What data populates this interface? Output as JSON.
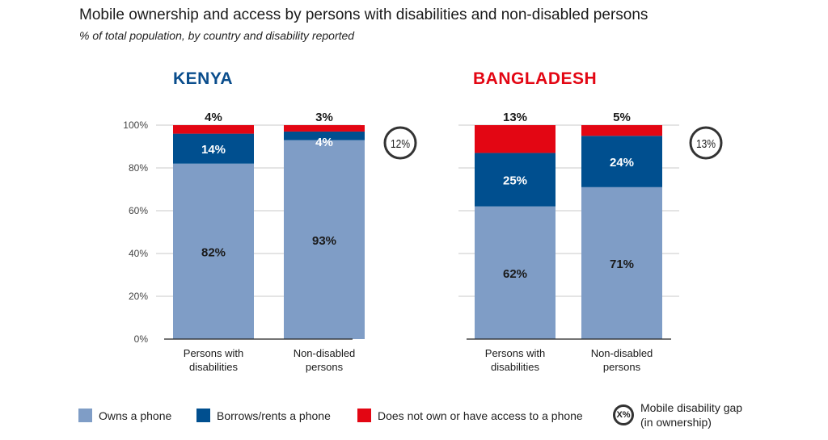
{
  "title": "Mobile ownership and access by persons with disabilities and non-disabled persons",
  "subtitle": "% of total population, by country and disability reported",
  "colors": {
    "owns": "#7f9dc6",
    "borrows": "#004f8f",
    "no_access": "#e30613",
    "kenya": "#0a4d8c",
    "bangladesh": "#e30613"
  },
  "legend": {
    "owns": "Owns a phone",
    "borrows": "Borrows/rents a phone",
    "no_access": "Does not own or have access to a phone",
    "gap_symbol": "X%",
    "gap_line1": "Mobile disability gap",
    "gap_line2": "(in ownership)"
  },
  "chart_data": [
    {
      "type": "bar",
      "stacked": true,
      "title": "KENYA",
      "categories": [
        "Persons with disabilities",
        "Non-disabled persons"
      ],
      "series": [
        {
          "name": "Owns a phone",
          "values": [
            82,
            93
          ]
        },
        {
          "name": "Borrows/rents a phone",
          "values": [
            14,
            4
          ]
        },
        {
          "name": "Does not own or have access to a phone",
          "values": [
            4,
            3
          ]
        }
      ],
      "gap": "12%",
      "yticks": [
        "0%",
        "20%",
        "40%",
        "60%",
        "80%",
        "100%"
      ],
      "ylim": [
        0,
        100
      ]
    },
    {
      "type": "bar",
      "stacked": true,
      "title": "BANGLADESH",
      "categories": [
        "Persons with disabilities",
        "Non-disabled persons"
      ],
      "series": [
        {
          "name": "Owns a phone",
          "values": [
            62,
            71
          ]
        },
        {
          "name": "Borrows/rents a phone",
          "values": [
            25,
            24
          ]
        },
        {
          "name": "Does not own or have access to a phone",
          "values": [
            13,
            5
          ]
        }
      ],
      "gap": "13%",
      "ylim": [
        0,
        100
      ]
    }
  ]
}
